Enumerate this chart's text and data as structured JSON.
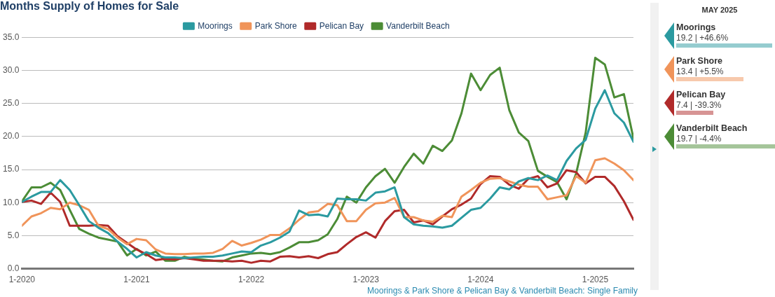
{
  "chart_data": [
    {
      "type": "line",
      "title": "Months Supply of Homes for Sale",
      "legend": "top",
      "grid": "y",
      "x": [
        "2020-01",
        "2020-02",
        "2020-03",
        "2020-04",
        "2020-05",
        "2020-06",
        "2020-07",
        "2020-08",
        "2020-09",
        "2020-10",
        "2020-11",
        "2020-12",
        "2021-01",
        "2021-02",
        "2021-03",
        "2021-04",
        "2021-05",
        "2021-06",
        "2021-07",
        "2021-08",
        "2021-09",
        "2021-10",
        "2021-11",
        "2021-12",
        "2022-01",
        "2022-02",
        "2022-03",
        "2022-04",
        "2022-05",
        "2022-06",
        "2022-07",
        "2022-08",
        "2022-09",
        "2022-10",
        "2022-11",
        "2022-12",
        "2023-01",
        "2023-02",
        "2023-03",
        "2023-04",
        "2023-05",
        "2023-06",
        "2023-07",
        "2023-08",
        "2023-09",
        "2023-10",
        "2023-11",
        "2023-12",
        "2024-01",
        "2024-02",
        "2024-03",
        "2024-04",
        "2024-05",
        "2024-06",
        "2024-07",
        "2024-08",
        "2024-09",
        "2024-10",
        "2024-11",
        "2024-12",
        "2025-01",
        "2025-02",
        "2025-03",
        "2025-04",
        "2025-05"
      ],
      "xlim": [
        "2020-01",
        "2025-05"
      ],
      "xticks": [
        {
          "value": "2020-01",
          "label": "1-2020"
        },
        {
          "value": "2021-01",
          "label": "1-2021"
        },
        {
          "value": "2022-01",
          "label": "1-2022"
        },
        {
          "value": "2023-01",
          "label": "1-2023"
        },
        {
          "value": "2024-01",
          "label": "1-2024"
        },
        {
          "value": "2025-01",
          "label": "1-2025"
        }
      ],
      "ylim": [
        0,
        35
      ],
      "yticks": [
        {
          "value": 0,
          "label": "0.0"
        },
        {
          "value": 5,
          "label": "5.0"
        },
        {
          "value": 10,
          "label": "10.0"
        },
        {
          "value": 15,
          "label": "15.0"
        },
        {
          "value": 20,
          "label": "20.0"
        },
        {
          "value": 25,
          "label": "25.0"
        },
        {
          "value": 30,
          "label": "30.0"
        },
        {
          "value": 35,
          "label": "35.0"
        }
      ],
      "annotations": [
        "Moorings & Park Shore & Pelican Bay & Vanderbilt Beach: Single Family"
      ],
      "series": [
        {
          "name": "Moorings",
          "color": "#2b9aa0",
          "values": [
            10.1,
            10.9,
            11.6,
            11.6,
            13.4,
            11.9,
            9.6,
            7.2,
            6.2,
            5.4,
            4.1,
            3.0,
            1.7,
            2.5,
            2.0,
            1.7,
            1.7,
            1.6,
            1.7,
            1.8,
            1.8,
            2.0,
            2.3,
            2.6,
            2.5,
            3.5,
            4.0,
            4.7,
            5.6,
            8.8,
            8.1,
            8.2,
            7.9,
            10.6,
            10.5,
            10.5,
            10.3,
            11.5,
            11.7,
            12.3,
            7.8,
            6.7,
            6.5,
            6.4,
            6.2,
            6.5,
            7.7,
            8.9,
            9.2,
            10.6,
            12.3,
            12.0,
            13.2,
            13.7,
            13.4,
            14.1,
            13.4,
            16.3,
            18.2,
            19.5,
            24.2,
            27.0,
            23.5,
            22.1,
            19.2
          ]
        },
        {
          "name": "Park Shore",
          "color": "#f0945a",
          "values": [
            6.5,
            7.9,
            8.4,
            9.2,
            9.0,
            10.0,
            9.6,
            8.9,
            6.5,
            6.0,
            4.7,
            3.7,
            4.5,
            4.3,
            2.9,
            2.3,
            2.2,
            2.2,
            2.3,
            2.3,
            2.4,
            3.0,
            4.2,
            3.5,
            3.9,
            4.4,
            5.1,
            5.1,
            6.1,
            7.4,
            8.5,
            8.7,
            9.8,
            9.6,
            7.2,
            7.2,
            8.9,
            9.9,
            10.0,
            10.7,
            7.8,
            7.8,
            7.3,
            7.1,
            8.0,
            7.8,
            10.9,
            11.9,
            13.0,
            13.6,
            13.7,
            13.2,
            12.7,
            12.4,
            12.4,
            10.5,
            10.8,
            11.1,
            14.0,
            13.0,
            16.4,
            16.7,
            15.9,
            14.9,
            13.4
          ]
        },
        {
          "name": "Pelican Bay",
          "color": "#b02a2a",
          "values": [
            10.1,
            10.3,
            9.8,
            11.5,
            10.1,
            6.5,
            6.5,
            6.5,
            6.6,
            6.5,
            4.9,
            3.9,
            2.9,
            2.2,
            1.3,
            1.5,
            1.4,
            1.6,
            1.4,
            1.2,
            1.2,
            1.2,
            1.1,
            1.2,
            0.9,
            1.2,
            1.1,
            1.8,
            1.9,
            1.7,
            1.9,
            1.6,
            2.2,
            2.5,
            3.7,
            4.8,
            5.5,
            4.7,
            7.2,
            8.7,
            8.9,
            7.0,
            7.3,
            6.7,
            7.9,
            9.0,
            9.7,
            10.6,
            12.8,
            14.0,
            13.9,
            12.7,
            12.1,
            13.6,
            14.0,
            12.3,
            12.9,
            14.9,
            14.6,
            12.9,
            13.9,
            13.9,
            12.5,
            10.2,
            7.4
          ]
        },
        {
          "name": "Vanderbilt Beach",
          "color": "#4c8c36",
          "values": [
            10.2,
            12.3,
            12.3,
            13.0,
            11.9,
            8.9,
            6.0,
            5.3,
            4.7,
            4.4,
            4.1,
            2.0,
            3.0,
            2.0,
            2.6,
            1.2,
            1.2,
            1.8,
            1.5,
            1.4,
            1.2,
            1.1,
            1.7,
            2.0,
            2.3,
            2.4,
            2.2,
            2.5,
            3.2,
            4.0,
            4.0,
            4.3,
            5.2,
            7.5,
            10.9,
            10.0,
            12.3,
            14.0,
            15.1,
            13.0,
            15.4,
            17.4,
            15.9,
            18.6,
            17.8,
            19.4,
            23.5,
            29.5,
            27.0,
            29.3,
            30.4,
            24.0,
            20.6,
            19.3,
            14.8,
            13.9,
            13.1,
            10.5,
            14.4,
            20.6,
            31.9,
            30.9,
            25.9,
            26.4,
            19.7
          ]
        }
      ]
    },
    {
      "type": "other",
      "title": "MAY 2025",
      "categories": [
        "Moorings",
        "Park Shore",
        "Pelican Bay",
        "Vanderbilt Beach"
      ],
      "values": [
        19.2,
        13.4,
        7.4,
        19.7
      ],
      "value_labels": [
        "19.2 | +46.6%",
        "13.4 | +5.5%",
        "7.4 | -39.3%",
        "19.7 | -4.4%"
      ],
      "colors": [
        "#2b9aa0",
        "#f0945a",
        "#b02a2a",
        "#4c8c36"
      ]
    }
  ]
}
